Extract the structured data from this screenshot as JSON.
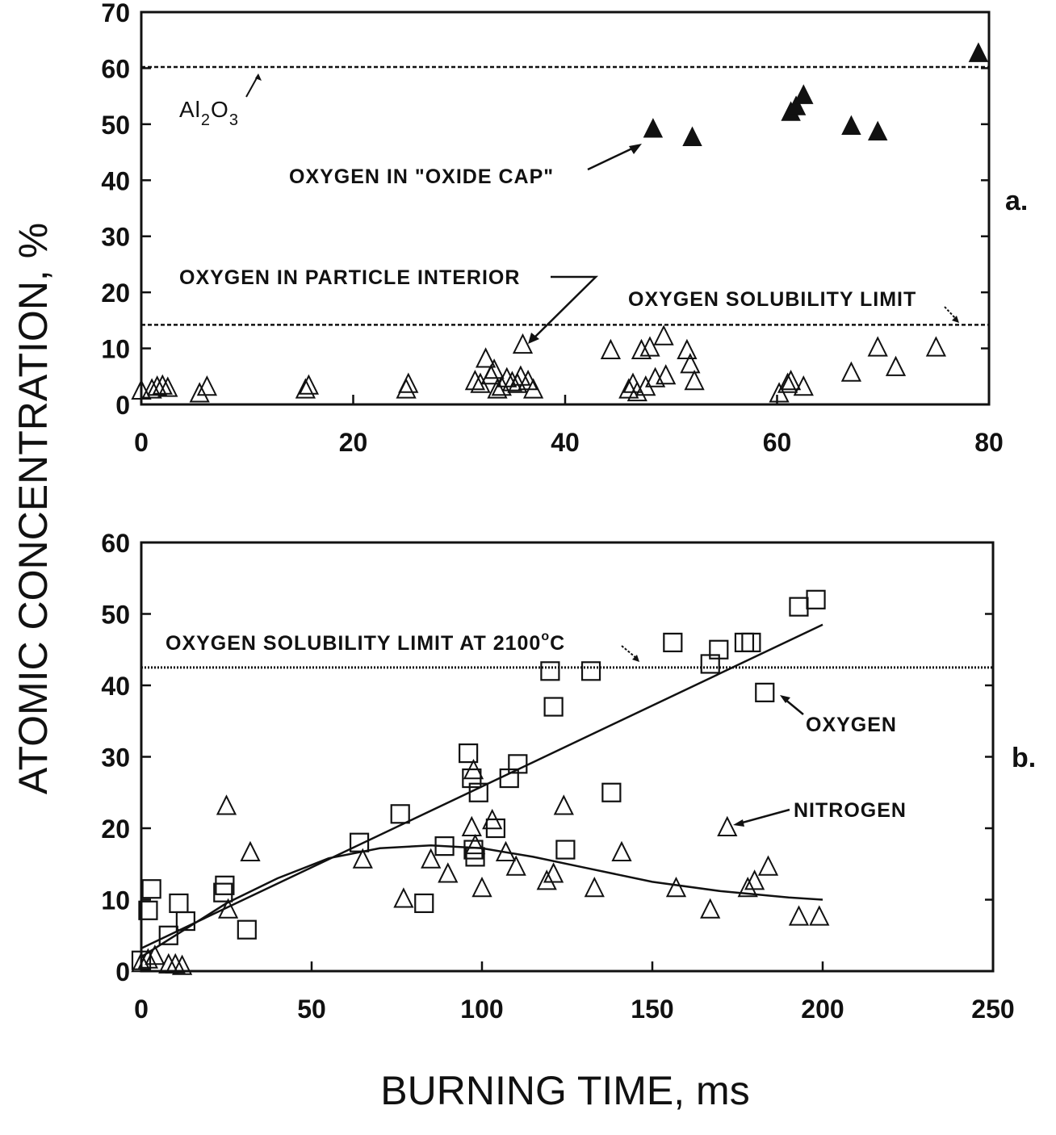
{
  "figure": {
    "ylabel": "ATOMIC CONCENTRATION, %",
    "xlabel": "BURNING TIME, ms",
    "colors": {
      "ink": "#111111",
      "background": "#ffffff"
    }
  },
  "chart_data": [
    {
      "type": "scatter",
      "panel_label": "a.",
      "xlim": [
        0,
        80
      ],
      "ylim": [
        0,
        70
      ],
      "x_ticks": [
        "0",
        "20",
        "40",
        "60",
        "80"
      ],
      "y_ticks": [
        "0",
        "10",
        "20",
        "30",
        "40",
        "50",
        "60",
        "70"
      ],
      "reference_lines": [
        {
          "y": 60.2,
          "label": "Al₂O₃",
          "style": "dashed"
        },
        {
          "y": 14.2,
          "label": "OXYGEN SOLUBILITY LIMIT",
          "style": "dashed"
        }
      ],
      "annotations": [
        "OXYGEN IN \"OXIDE CAP\"",
        "OXYGEN IN PARTICLE INTERIOR"
      ],
      "series": [
        {
          "marker": "filled-triangle",
          "points": [
            [
              48.3,
              49.0
            ],
            [
              52.0,
              47.5
            ],
            [
              61.3,
              52.0
            ],
            [
              61.8,
              53.0
            ],
            [
              62.5,
              55.0
            ],
            [
              67.0,
              49.5
            ],
            [
              69.5,
              48.5
            ],
            [
              79.0,
              62.5
            ]
          ]
        },
        {
          "marker": "open-triangle",
          "points": [
            [
              0,
              2.3
            ],
            [
              1,
              2.5
            ],
            [
              1.5,
              3.0
            ],
            [
              2,
              3.2
            ],
            [
              2.5,
              2.8
            ],
            [
              5.5,
              1.8
            ],
            [
              6.2,
              3.0
            ],
            [
              15.5,
              2.5
            ],
            [
              15.8,
              3.2
            ],
            [
              25.0,
              2.5
            ],
            [
              25.2,
              3.5
            ],
            [
              31.5,
              4.0
            ],
            [
              32.0,
              3.5
            ],
            [
              32.5,
              8.0
            ],
            [
              33.0,
              5.0
            ],
            [
              33.3,
              6.0
            ],
            [
              33.6,
              2.5
            ],
            [
              34.0,
              3.0
            ],
            [
              34.5,
              4.5
            ],
            [
              35.0,
              3.8
            ],
            [
              35.5,
              3.5
            ],
            [
              35.8,
              4.8
            ],
            [
              36.0,
              10.5
            ],
            [
              36.5,
              4.0
            ],
            [
              37.0,
              2.5
            ],
            [
              44.3,
              9.5
            ],
            [
              46.0,
              2.5
            ],
            [
              46.4,
              3.5
            ],
            [
              46.8,
              2.0
            ],
            [
              47.2,
              9.5
            ],
            [
              47.6,
              3.0
            ],
            [
              48.0,
              10.0
            ],
            [
              48.5,
              4.5
            ],
            [
              49.3,
              12.0
            ],
            [
              49.5,
              5.0
            ],
            [
              51.5,
              9.5
            ],
            [
              51.8,
              7.0
            ],
            [
              52.2,
              4.0
            ],
            [
              60.2,
              1.8
            ],
            [
              61.0,
              3.5
            ],
            [
              61.3,
              4.0
            ],
            [
              62.5,
              3.0
            ],
            [
              67.0,
              5.5
            ],
            [
              69.5,
              10.0
            ],
            [
              71.2,
              6.5
            ],
            [
              75.0,
              10.0
            ]
          ]
        }
      ]
    },
    {
      "type": "scatter",
      "panel_label": "b.",
      "xlim": [
        0,
        250
      ],
      "ylim": [
        0,
        60
      ],
      "x_ticks": [
        "0",
        "50",
        "100",
        "150",
        "200",
        "250"
      ],
      "y_ticks": [
        "0",
        "10",
        "20",
        "30",
        "40",
        "50",
        "60"
      ],
      "reference_lines": [
        {
          "y": 42.5,
          "label": "OXYGEN SOLUBILITY LIMIT AT 2100°C",
          "style": "dotted"
        }
      ],
      "series": [
        {
          "name": "OXYGEN",
          "marker": "open-square",
          "points": [
            [
              0,
              1.5
            ],
            [
              2,
              8.5
            ],
            [
              3,
              11.5
            ],
            [
              8,
              5.0
            ],
            [
              11,
              9.5
            ],
            [
              13,
              7.0
            ],
            [
              24,
              11.0
            ],
            [
              24.5,
              12.0
            ],
            [
              31,
              5.8
            ],
            [
              64,
              18.0
            ],
            [
              76,
              22.0
            ],
            [
              83,
              9.5
            ],
            [
              89,
              17.5
            ],
            [
              96,
              30.5
            ],
            [
              97,
              27.0
            ],
            [
              97.5,
              17.0
            ],
            [
              98,
              16.0
            ],
            [
              99,
              25.0
            ],
            [
              104,
              20.0
            ],
            [
              108,
              27.0
            ],
            [
              110.5,
              29.0
            ],
            [
              120,
              42.0
            ],
            [
              121,
              37.0
            ],
            [
              124.5,
              17.0
            ],
            [
              132,
              42.0
            ],
            [
              138,
              25.0
            ],
            [
              156,
              46.0
            ],
            [
              167,
              43.0
            ],
            [
              169.5,
              45.0
            ],
            [
              177,
              46.0
            ],
            [
              179,
              46.0
            ],
            [
              183,
              39.0
            ],
            [
              193,
              51.0
            ],
            [
              198,
              52.0
            ]
          ],
          "fit": "linear",
          "fit_points": [
            [
              0,
              3.2
            ],
            [
              200,
              48.5
            ]
          ]
        },
        {
          "name": "NITROGEN",
          "marker": "open-triangle",
          "points": [
            [
              0,
              1.0
            ],
            [
              2,
              1.5
            ],
            [
              4,
              2.0
            ],
            [
              8,
              0.8
            ],
            [
              10,
              0.8
            ],
            [
              12,
              0.6
            ],
            [
              25,
              23.0
            ],
            [
              25.5,
              8.5
            ],
            [
              32,
              16.5
            ],
            [
              65,
              15.5
            ],
            [
              77,
              10.0
            ],
            [
              85,
              15.5
            ],
            [
              90,
              13.5
            ],
            [
              97,
              20.0
            ],
            [
              97.5,
              28.0
            ],
            [
              98,
              17.5
            ],
            [
              100,
              11.5
            ],
            [
              103,
              21.0
            ],
            [
              107,
              16.5
            ],
            [
              110,
              14.5
            ],
            [
              119,
              12.5
            ],
            [
              121,
              13.5
            ],
            [
              124,
              23.0
            ],
            [
              133,
              11.5
            ],
            [
              141,
              16.5
            ],
            [
              157,
              11.5
            ],
            [
              167,
              8.5
            ],
            [
              172,
              20.0
            ],
            [
              178,
              11.5
            ],
            [
              180,
              12.5
            ],
            [
              184,
              14.5
            ],
            [
              193,
              7.5
            ],
            [
              199,
              7.5
            ]
          ],
          "fit": "smooth-curve",
          "fit_points": [
            [
              0,
              2.0
            ],
            [
              10,
              5.0
            ],
            [
              25,
              9.5
            ],
            [
              40,
              13.0
            ],
            [
              55,
              15.8
            ],
            [
              70,
              17.2
            ],
            [
              85,
              17.6
            ],
            [
              100,
              17.2
            ],
            [
              115,
              16.0
            ],
            [
              130,
              14.5
            ],
            [
              150,
              12.5
            ],
            [
              170,
              11.2
            ],
            [
              190,
              10.3
            ],
            [
              200,
              10.0
            ]
          ]
        }
      ]
    }
  ],
  "labels": {
    "al2o3_main": "Al",
    "al2o3_sub1": "2",
    "al2o3_mid": "O",
    "al2o3_sub2": "3",
    "oxide_cap": "OXYGEN IN \"OXIDE CAP\"",
    "particle_interior": "OXYGEN IN PARTICLE INTERIOR",
    "solubility_a": "OXYGEN SOLUBILITY LIMIT",
    "solubility_b_main": "OXYGEN SOLUBILITY LIMIT AT 2100",
    "solubility_b_deg": "o",
    "solubility_b_unit": "C",
    "oxygen": "OXYGEN",
    "nitrogen": "NITROGEN"
  }
}
